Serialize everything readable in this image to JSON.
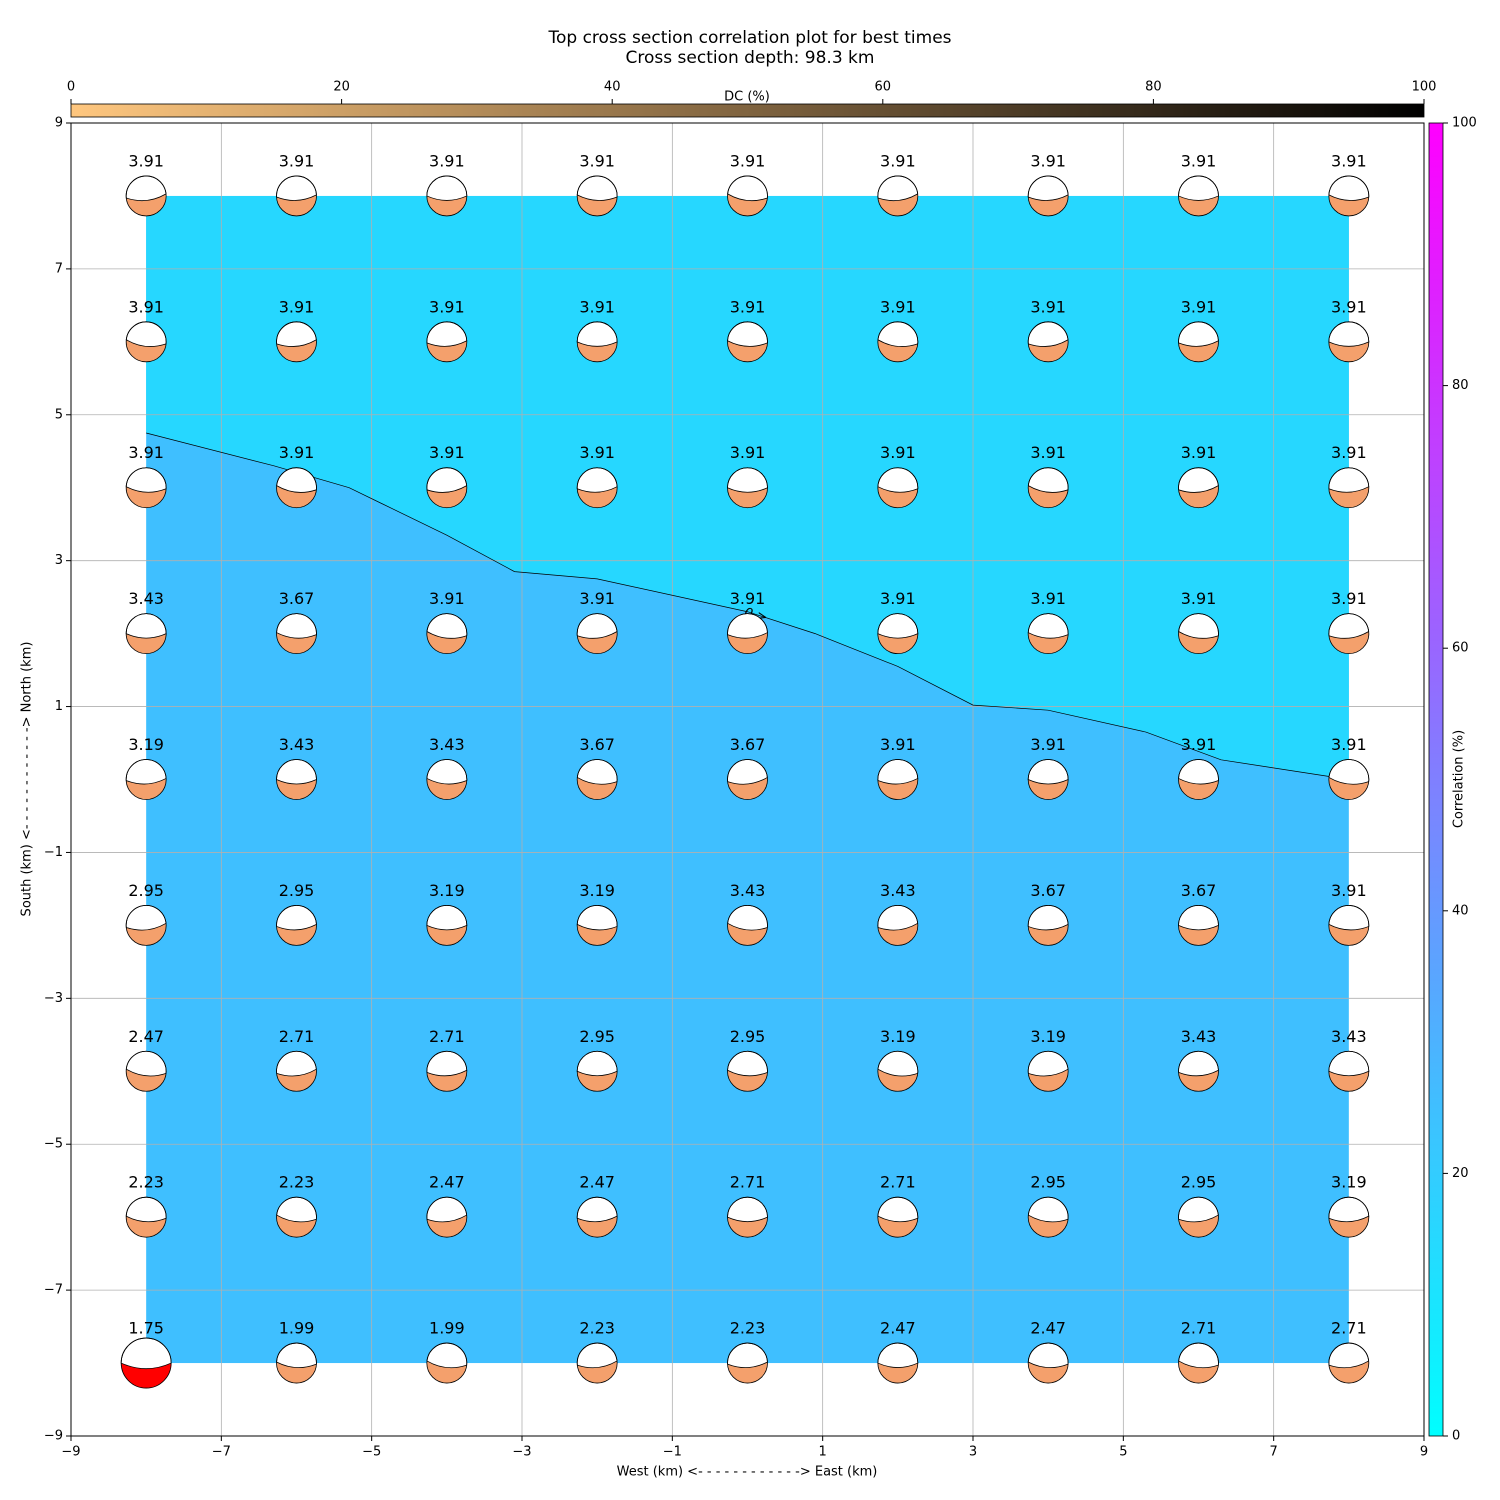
{
  "chart_data": {
    "type": "beachball_grid",
    "title": "Top cross section correlation plot for best times",
    "subtitle": "Cross section depth: 98.3 km",
    "x_label": "West (km) <- - - - - - - - - - - -> East (km)",
    "y_label": "South (km) <- - - - - - - - - - - -> North (km)",
    "x": [
      -8,
      -6,
      -4,
      -2,
      0,
      2,
      4,
      6,
      8
    ],
    "y": [
      8,
      6,
      4,
      2,
      0,
      -2,
      -4,
      -6,
      -8
    ],
    "values": [
      [
        3.91,
        3.91,
        3.91,
        3.91,
        3.91,
        3.91,
        3.91,
        3.91,
        3.91
      ],
      [
        3.91,
        3.91,
        3.91,
        3.91,
        3.91,
        3.91,
        3.91,
        3.91,
        3.91
      ],
      [
        3.91,
        3.91,
        3.91,
        3.91,
        3.91,
        3.91,
        3.91,
        3.91,
        3.91
      ],
      [
        3.43,
        3.67,
        3.91,
        3.91,
        3.91,
        3.91,
        3.91,
        3.91,
        3.91
      ],
      [
        3.19,
        3.43,
        3.43,
        3.67,
        3.67,
        3.91,
        3.91,
        3.91,
        3.91
      ],
      [
        2.95,
        2.95,
        3.19,
        3.19,
        3.43,
        3.43,
        3.67,
        3.67,
        3.91
      ],
      [
        2.47,
        2.71,
        2.71,
        2.95,
        2.95,
        3.19,
        3.19,
        3.43,
        3.43
      ],
      [
        2.23,
        2.23,
        2.47,
        2.47,
        2.71,
        2.71,
        2.95,
        2.95,
        3.19
      ],
      [
        1.75,
        1.99,
        1.99,
        2.23,
        2.23,
        2.47,
        2.47,
        2.71,
        2.71
      ]
    ],
    "beachball_color": "#f4a06c",
    "best_color": "#ff0000",
    "contour": {
      "x": [
        -8,
        -6.3,
        -5.3,
        -4,
        -3.1,
        -2,
        0,
        0.9,
        2,
        3,
        4,
        5.3,
        6.3,
        8
      ],
      "y": [
        4.75,
        4.3,
        4.0,
        3.35,
        2.85,
        2.75,
        2.3,
        2.0,
        1.55,
        1.02,
        0.95,
        0.65,
        0.27,
        0.0
      ],
      "label": "0.>",
      "color_below": "#3fbfff",
      "color_above": "#26d7ff"
    },
    "xlim": [
      -9,
      9
    ],
    "ylim": [
      -9,
      9
    ],
    "xticks": [
      {
        "value": -9,
        "label": "−9"
      },
      {
        "value": -7,
        "label": "−7"
      },
      {
        "value": -5,
        "label": "−5"
      },
      {
        "value": -3,
        "label": "−3"
      },
      {
        "value": -1,
        "label": "−1"
      },
      1,
      3,
      5,
      7,
      9
    ],
    "yticks": [
      {
        "value": -9,
        "label": "−9"
      },
      {
        "value": -7,
        "label": "−7"
      },
      {
        "value": -5,
        "label": "−5"
      },
      {
        "value": -3,
        "label": "−3"
      },
      {
        "value": -1,
        "label": "−1"
      },
      1,
      3,
      5,
      7,
      9
    ],
    "grid": true,
    "dc_colorbar": {
      "label": "DC (%)",
      "lim": [
        0,
        100
      ],
      "ticks": [
        0,
        20,
        40,
        60,
        80,
        100
      ],
      "colors": [
        "#ffc77f",
        "#000000"
      ]
    },
    "corr_colorbar": {
      "label": "Correlation (%)",
      "lim": [
        0,
        100
      ],
      "ticks": [
        0,
        20,
        40,
        60,
        80,
        100
      ],
      "colors": [
        "#00ffff",
        "#ff00ff"
      ]
    }
  }
}
